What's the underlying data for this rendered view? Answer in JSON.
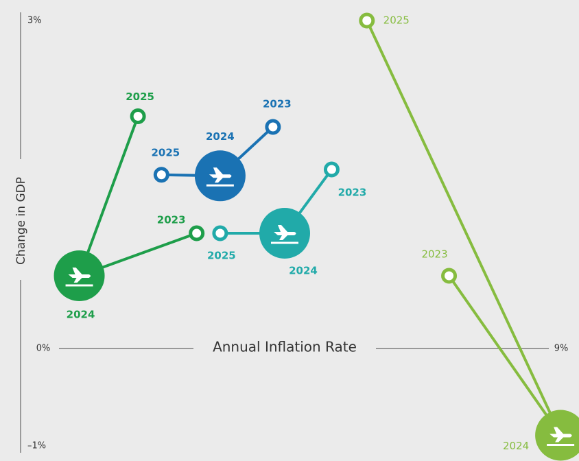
{
  "chart_data": {
    "type": "connected-scatter",
    "x_label": "Annual Inflation Rate",
    "y_label": "Change in GDP",
    "xlim": [
      0,
      9
    ],
    "ylim": [
      -1,
      3
    ],
    "xticks": [
      {
        "value": 0,
        "label": "0%"
      },
      {
        "value": 9,
        "label": "9%"
      }
    ],
    "yticks": [
      {
        "value": -1,
        "label": "–1%"
      },
      {
        "value": 3,
        "label": "3%"
      }
    ],
    "years": [
      "2023",
      "2024",
      "2025"
    ],
    "series": [
      {
        "color": "#1e9e4a",
        "x": [
          3.0,
          1.0,
          2.0
        ],
        "values": [
          1.0,
          0.6,
          2.1
        ]
      },
      {
        "color": "#1a72b3",
        "x": [
          4.3,
          3.4,
          2.4
        ],
        "values": [
          2.0,
          1.54,
          1.55
        ]
      },
      {
        "color": "#21aaa9",
        "x": [
          5.3,
          4.5,
          3.4
        ],
        "values": [
          1.6,
          1.0,
          1.0
        ]
      },
      {
        "color": "#86bc3f",
        "x": [
          7.3,
          9.2,
          5.9
        ],
        "values": [
          0.6,
          -0.9,
          3.0
        ]
      }
    ]
  }
}
